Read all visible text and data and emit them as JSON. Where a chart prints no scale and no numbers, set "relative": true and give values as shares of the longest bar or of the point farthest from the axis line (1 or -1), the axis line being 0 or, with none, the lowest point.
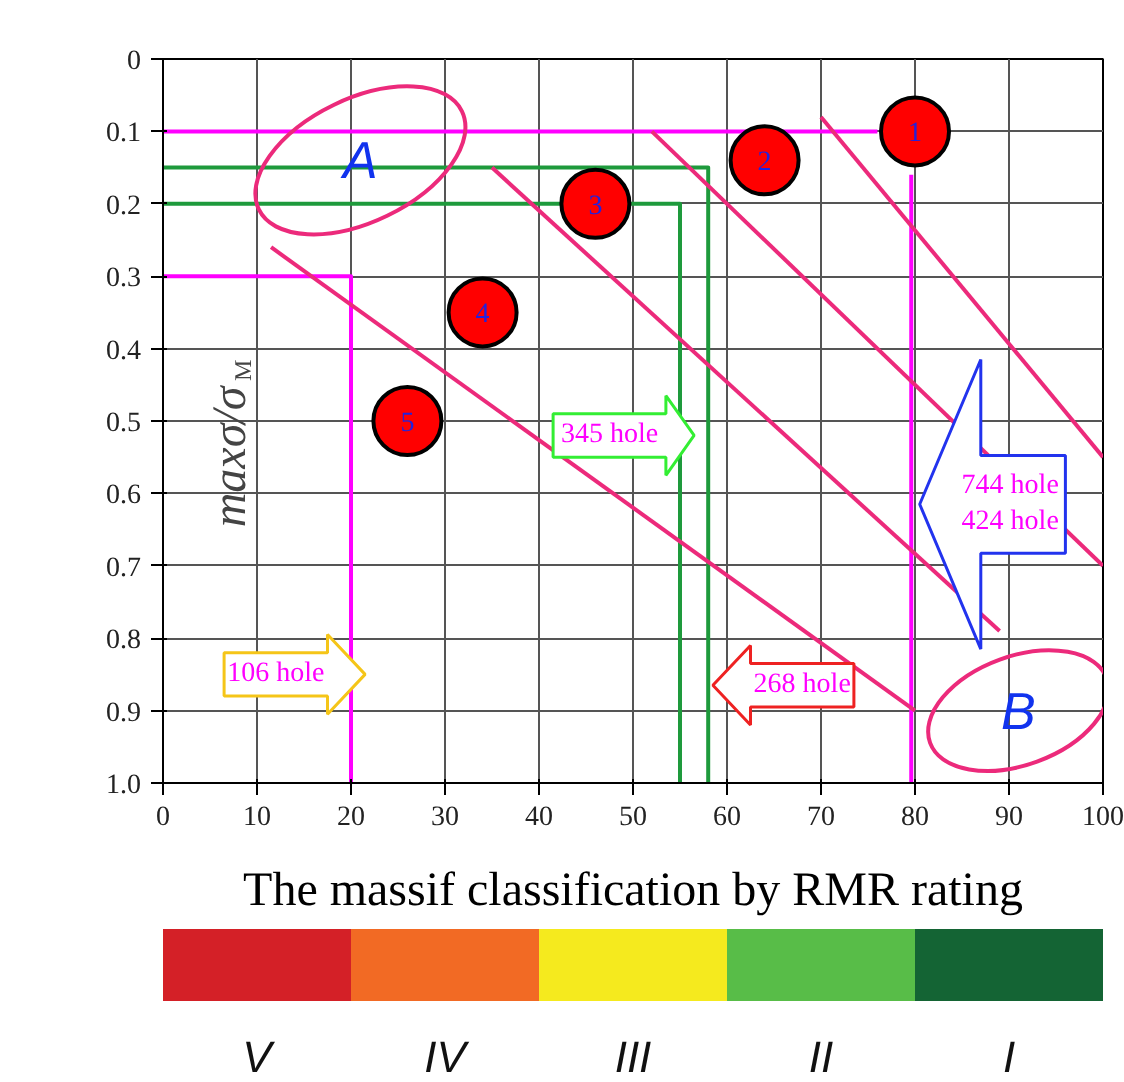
{
  "chart_data": [
    {
      "type": "scatter",
      "ylabel": "maxσ/σ$_{M}$",
      "xlim": [
        0,
        100
      ],
      "ylim": [
        1.0,
        0
      ],
      "xticks": [
        0,
        10,
        20,
        30,
        40,
        50,
        60,
        70,
        80,
        90,
        100
      ],
      "yticks": [
        0,
        0.1,
        0.2,
        0.3,
        0.4,
        0.5,
        0.6,
        0.7,
        0.8,
        0.9,
        {
          "value": 1,
          "label": "1.0"
        }
      ],
      "grid": true,
      "series": [
        {
          "type": "scatter",
          "marker": "circle",
          "color": "#ff0000",
          "x": [
            80,
            64,
            46,
            34,
            26
          ],
          "values": [
            0.1,
            0.14,
            0.2,
            0.35,
            0.5
          ]
        },
        {
          "type": "line",
          "color": "#ff00ff",
          "x": [
            0,
            76
          ],
          "values": [
            0.1,
            0.1
          ]
        },
        {
          "type": "line",
          "color": "#ff00ff",
          "x": [
            79.6,
            79.6
          ],
          "values": [
            0.16,
            1.0
          ]
        },
        {
          "type": "line",
          "color": "#1e9a3c",
          "x": [
            0,
            58,
            58
          ],
          "values": [
            0.15,
            0.15,
            1.0
          ]
        },
        {
          "type": "line",
          "color": "#1e9a3c",
          "x": [
            0,
            55,
            55
          ],
          "values": [
            0.2,
            0.2,
            1.0
          ]
        },
        {
          "type": "line",
          "color": "#ff00ff",
          "x": [
            0,
            20,
            20
          ],
          "values": [
            0.3,
            0.3,
            1.0
          ]
        },
        {
          "type": "line",
          "color": "#ec2a7b",
          "x": [
            11.5,
            80
          ],
          "values": [
            0.26,
            0.9
          ]
        },
        {
          "type": "line",
          "color": "#ec2a7b",
          "x": [
            35,
            89
          ],
          "values": [
            0.15,
            0.79
          ]
        },
        {
          "type": "line",
          "color": "#ec2a7b",
          "x": [
            52,
            100
          ],
          "values": [
            0.1,
            0.7
          ]
        },
        {
          "type": "line",
          "color": "#ec2a7b",
          "x": [
            70,
            100
          ],
          "values": [
            0.08,
            0.55
          ]
        }
      ],
      "annotations": [
        {
          "text": "1",
          "x": 80,
          "y": 0.1
        },
        {
          "text": "2",
          "x": 64,
          "y": 0.14
        },
        {
          "text": "3",
          "x": 46,
          "y": 0.2
        },
        {
          "text": "4",
          "x": 34,
          "y": 0.35
        },
        {
          "text": "5",
          "x": 26,
          "y": 0.5
        },
        "A",
        "B",
        "106 hole",
        "345 hole",
        "268 hole",
        "744  hole",
        "424  hole"
      ]
    },
    {
      "type": "bar",
      "orientation": "horizontal",
      "stacked": true,
      "relative": true,
      "title": "The massif classification by RMR rating",
      "categories": [
        null
      ],
      "series": [
        {
          "name": "V",
          "color": "#d42027",
          "values": [
            0.2
          ]
        },
        {
          "name": "IV",
          "color": "#f26a24",
          "values": [
            0.2
          ]
        },
        {
          "name": "III",
          "color": "#f5ea1e",
          "values": [
            0.2
          ]
        },
        {
          "name": "II",
          "color": "#58bd48",
          "values": [
            0.2
          ]
        },
        {
          "name": "I",
          "color": "#146434",
          "values": [
            0.2
          ]
        }
      ]
    }
  ]
}
